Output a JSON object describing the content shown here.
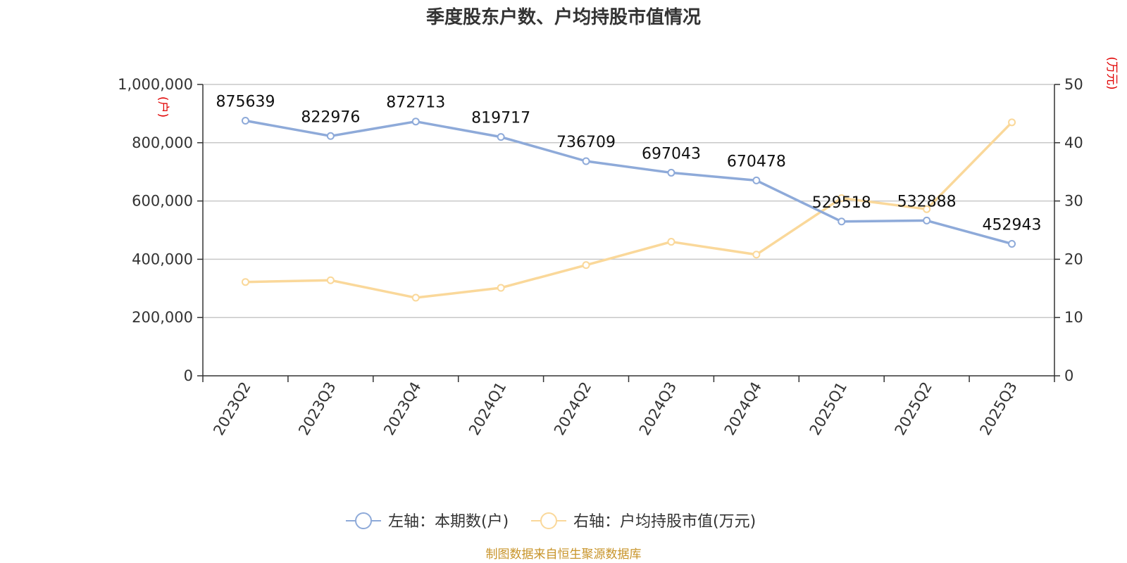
{
  "chart_data": {
    "type": "line",
    "title": "季度股东户数、户均持股市值情况",
    "categories": [
      "2023Q2",
      "2023Q3",
      "2023Q4",
      "2024Q1",
      "2024Q2",
      "2024Q3",
      "2024Q4",
      "2025Q1",
      "2025Q2",
      "2025Q3"
    ],
    "y_left": {
      "unit": "(户)",
      "ylim": [
        0,
        1000000
      ],
      "ticks": [
        "0",
        "200,000",
        "400,000",
        "600,000",
        "800,000",
        "1,000,000"
      ],
      "tick_values": [
        0,
        200000,
        400000,
        600000,
        800000,
        1000000
      ]
    },
    "y_right": {
      "unit": "(万元)",
      "ylim": [
        0,
        50
      ],
      "ticks": [
        "0",
        "10",
        "20",
        "30",
        "40",
        "50"
      ],
      "tick_values": [
        0,
        10,
        20,
        30,
        40,
        50
      ]
    },
    "series": [
      {
        "name": "左轴：本期数(户)",
        "axis": "left",
        "color": "#8eaad9",
        "values": [
          875639,
          822976,
          872713,
          819717,
          736709,
          697043,
          670478,
          529518,
          532888,
          452943
        ],
        "labels": [
          "875639",
          "822976",
          "872713",
          "819717",
          "736709",
          "697043",
          "670478",
          "529518",
          "532888",
          "452943"
        ]
      },
      {
        "name": "右轴：户均持股市值(万元)",
        "axis": "right",
        "color": "#fad89a",
        "values": [
          16.1,
          16.4,
          13.4,
          15.1,
          19.0,
          23.0,
          20.8,
          30.5,
          28.6,
          43.5
        ]
      }
    ],
    "grid": true,
    "legend": "bottom-center",
    "source": "制图数据来自恒生聚源数据库"
  }
}
